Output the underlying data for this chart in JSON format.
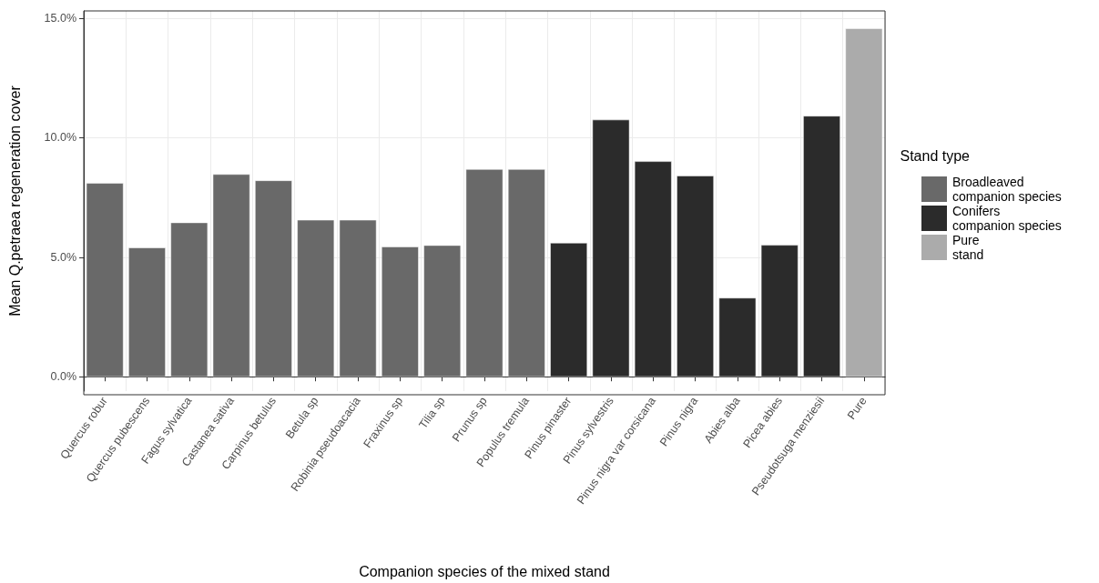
{
  "chart_data": {
    "type": "bar",
    "xlabel": "Companion species of the mixed stand",
    "ylabel": "Mean Q.petraea regeneration cover",
    "legend_title": "Stand type",
    "categories": [
      "Quercus robur",
      "Quercus pubescens",
      "Fagus sylvatica",
      "Castanea sativa",
      "Carpinus betulus",
      "Betula sp",
      "Robinia pseudoacacia",
      "Fraxinus sp",
      "Tilia sp",
      "Prunus sp",
      "Populus tremula",
      "Pinus pinaster",
      "Pinus sylvestris",
      "Pinus nigra var corsicana",
      "Pinus nigra",
      "Abies alba",
      "Picea abies",
      "Pseudotsuga menziesii",
      "Pure"
    ],
    "series": [
      {
        "name": "Broadleaved companion species",
        "color": "#696969",
        "values": [
          8.1,
          5.4,
          6.45,
          8.47,
          8.21,
          6.56,
          6.56,
          5.44,
          5.5,
          8.68,
          8.68,
          null,
          null,
          null,
          null,
          null,
          null,
          null,
          null
        ]
      },
      {
        "name": "Conifers companion species",
        "color": "#2b2b2b",
        "values": [
          null,
          null,
          null,
          null,
          null,
          null,
          null,
          null,
          null,
          null,
          null,
          5.6,
          10.75,
          9.01,
          8.41,
          3.3,
          5.51,
          10.91,
          null
        ]
      },
      {
        "name": "Pure stand",
        "color": "#ababab",
        "values": [
          null,
          null,
          null,
          null,
          null,
          null,
          null,
          null,
          null,
          null,
          null,
          null,
          null,
          null,
          null,
          null,
          null,
          null,
          14.57
        ]
      }
    ],
    "stacked": true,
    "ylim": [
      -0.6,
      15.3
    ],
    "yticks": [
      {
        "value": 0,
        "label": "0.0%"
      },
      {
        "value": 5,
        "label": "5.0%"
      },
      {
        "value": 10,
        "label": "10.0%"
      },
      {
        "value": 15,
        "label": "15.0%"
      }
    ],
    "grid": true,
    "legend": "right"
  }
}
